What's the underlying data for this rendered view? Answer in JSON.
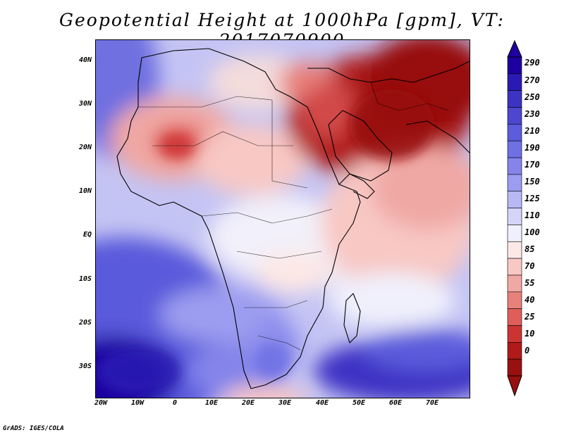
{
  "title": "Geopotential Height at 1000hPa [gpm], VT: 2017070900",
  "map": {
    "lat_labels": [
      "40N",
      "30N",
      "20N",
      "10N",
      "EQ",
      "10S",
      "20S",
      "30S"
    ],
    "lon_labels": [
      "20W",
      "10W",
      "0",
      "10E",
      "20E",
      "30E",
      "40E",
      "50E",
      "60E",
      "70E"
    ]
  },
  "colorbar": {
    "labels": [
      "290",
      "270",
      "250",
      "230",
      "210",
      "190",
      "170",
      "150",
      "125",
      "110",
      "100",
      "85",
      "70",
      "55",
      "40",
      "25",
      "10",
      "0"
    ],
    "colors": [
      "#1e00a0",
      "#2a1ab4",
      "#3c32c4",
      "#4c46d0",
      "#5c5cdc",
      "#6e70e4",
      "#8484ea",
      "#9c9cf0",
      "#b8b8f4",
      "#d4d4f8",
      "#f0f0fc",
      "#fce8e6",
      "#f8c8c4",
      "#f0a8a4",
      "#e8807c",
      "#e05e5a",
      "#cc3434",
      "#b01a1a",
      "#981010"
    ]
  },
  "credit": "GrADS: IGES/COLA"
}
